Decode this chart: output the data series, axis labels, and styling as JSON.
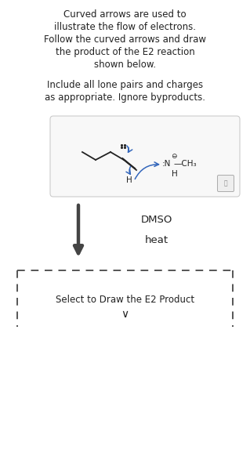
{
  "bg_color": "#ffffff",
  "text_color": "#222222",
  "title_lines": [
    "Curved arrows are used to",
    "illustrate the flow of electrons.",
    "Follow the curved arrows and draw",
    "the product of the E2 reaction",
    "shown below."
  ],
  "subtitle_lines": [
    "Include all lone pairs and charges",
    "as appropriate. Ignore byproducts."
  ],
  "dmso_label": "DMSO",
  "heat_label": "heat",
  "select_label": "Select to Draw the E2 Product",
  "arrow_color": "#444444",
  "curved_arrow_color": "#3366bb",
  "dashed_box_color": "#555555",
  "mol_box_edge": "#cccccc",
  "mol_box_face": "#f8f8f8",
  "mol_color": "#222222"
}
